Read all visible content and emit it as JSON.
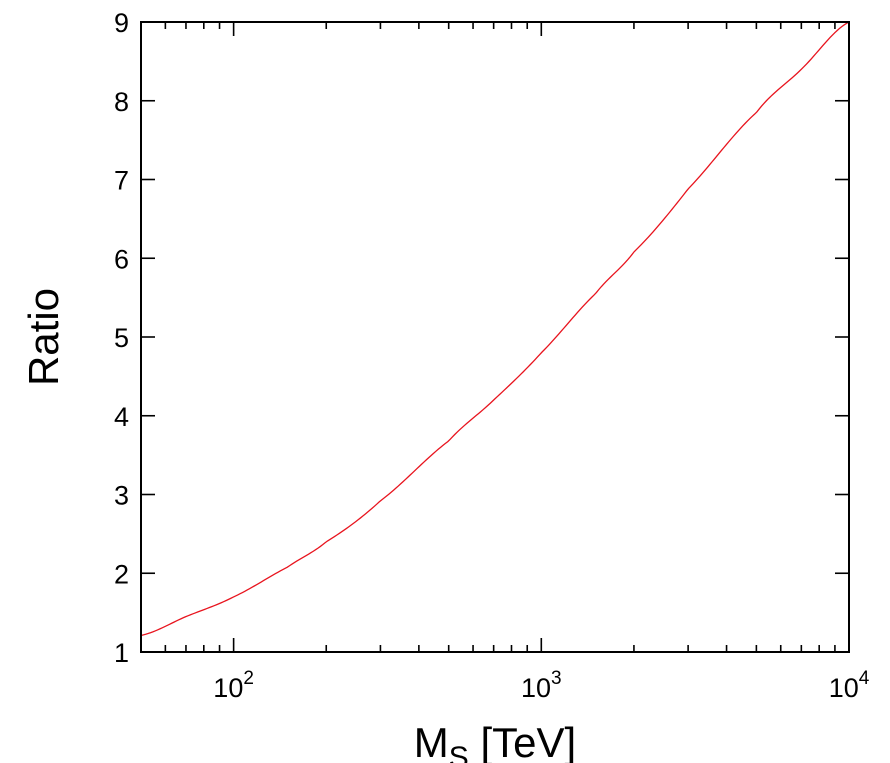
{
  "chart_data": {
    "type": "line",
    "xlabel_main": "M",
    "xlabel_sub": "S",
    "xlabel_unit": " [TeV]",
    "ylabel": "Ratio",
    "x_scale": "log",
    "xlim": [
      50,
      10000
    ],
    "ylim": [
      1,
      9
    ],
    "grid": false,
    "line_color": "#e8141e",
    "y_ticks": [
      {
        "value": 1,
        "label": "1"
      },
      {
        "value": 2,
        "label": "2"
      },
      {
        "value": 3,
        "label": "3"
      },
      {
        "value": 4,
        "label": "4"
      },
      {
        "value": 5,
        "label": "5"
      },
      {
        "value": 6,
        "label": "6"
      },
      {
        "value": 7,
        "label": "7"
      },
      {
        "value": 8,
        "label": "8"
      },
      {
        "value": 9,
        "label": "9"
      }
    ],
    "x_major_ticks": [
      {
        "value": 100,
        "base": "10",
        "exp": "2"
      },
      {
        "value": 1000,
        "base": "10",
        "exp": "3"
      },
      {
        "value": 10000,
        "base": "10",
        "exp": "4"
      }
    ],
    "x_minor_ticks": [
      50,
      60,
      70,
      80,
      90,
      200,
      300,
      400,
      500,
      600,
      700,
      800,
      900,
      2000,
      3000,
      4000,
      5000,
      6000,
      7000,
      8000,
      9000
    ],
    "series": [
      {
        "x": [
          50,
          70,
          100,
          150,
          200,
          300,
          500,
          700,
          1000,
          1500,
          2000,
          3000,
          5000,
          7000,
          10000
        ],
        "y": [
          1.21,
          1.45,
          1.7,
          2.08,
          2.4,
          2.92,
          3.68,
          4.2,
          4.8,
          5.55,
          6.08,
          6.88,
          7.85,
          8.4,
          9.0
        ]
      }
    ]
  }
}
